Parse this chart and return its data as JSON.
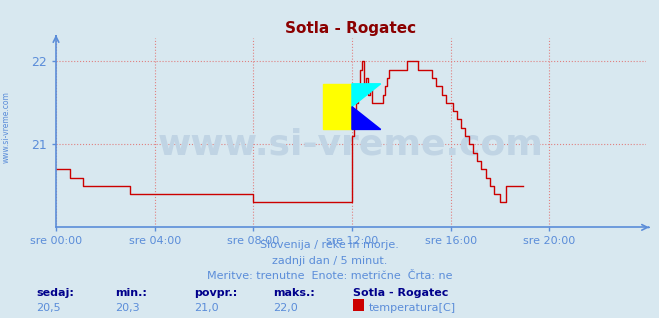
{
  "title": "Sotla - Rogatec",
  "title_color": "#8b0000",
  "bg_color": "#d8e8f0",
  "plot_bg_color": "#d8e8f0",
  "line_color": "#cc0000",
  "axis_color": "#5b8dd9",
  "grid_color": "#e08080",
  "grid_style": ":",
  "ylim": [
    20.0,
    22.28
  ],
  "yticks": [
    21,
    22
  ],
  "xlim": [
    0,
    287
  ],
  "xtick_positions": [
    0,
    48,
    96,
    144,
    192,
    240
  ],
  "xtick_labels": [
    "sre 00:00",
    "sre 04:00",
    "sre 08:00",
    "sre 12:00",
    "sre 16:00",
    "sre 20:00"
  ],
  "watermark_text": "www.si-vreme.com",
  "watermark_color": "#c0d4e4",
  "watermark_fontsize": 26,
  "sidebar_text": "www.si-vreme.com",
  "sidebar_color": "#5b8dd9",
  "info_line1": "Slovenija / reke in morje.",
  "info_line2": "zadnji dan / 5 minut.",
  "info_line3": "Meritve: trenutne  Enote: metrične  Črta: ne",
  "info_color": "#5b8dd9",
  "stats_labels": [
    "sedaj:",
    "min.:",
    "povpr.:",
    "maks.:"
  ],
  "stats_values": [
    "20,5",
    "20,3",
    "21,0",
    "22,0"
  ],
  "stats_label_color": "#00008b",
  "stats_value_color": "#5b8dd9",
  "legend_station": "Sotla - Rogatec",
  "legend_label": "temperatura[C]",
  "legend_color": "#cc0000",
  "temperature_data": [
    20.7,
    20.7,
    20.7,
    20.7,
    20.7,
    20.7,
    20.7,
    20.6,
    20.6,
    20.6,
    20.6,
    20.6,
    20.6,
    20.5,
    20.5,
    20.5,
    20.5,
    20.5,
    20.5,
    20.5,
    20.5,
    20.5,
    20.5,
    20.5,
    20.5,
    20.5,
    20.5,
    20.5,
    20.5,
    20.5,
    20.5,
    20.5,
    20.5,
    20.5,
    20.5,
    20.5,
    20.4,
    20.4,
    20.4,
    20.4,
    20.4,
    20.4,
    20.4,
    20.4,
    20.4,
    20.4,
    20.4,
    20.4,
    20.4,
    20.4,
    20.4,
    20.4,
    20.4,
    20.4,
    20.4,
    20.4,
    20.4,
    20.4,
    20.4,
    20.4,
    20.4,
    20.4,
    20.4,
    20.4,
    20.4,
    20.4,
    20.4,
    20.4,
    20.4,
    20.4,
    20.4,
    20.4,
    20.4,
    20.4,
    20.4,
    20.4,
    20.4,
    20.4,
    20.4,
    20.4,
    20.4,
    20.4,
    20.4,
    20.4,
    20.4,
    20.4,
    20.4,
    20.4,
    20.4,
    20.4,
    20.4,
    20.4,
    20.4,
    20.4,
    20.4,
    20.4,
    20.3,
    20.3,
    20.3,
    20.3,
    20.3,
    20.3,
    20.3,
    20.3,
    20.3,
    20.3,
    20.3,
    20.3,
    20.3,
    20.3,
    20.3,
    20.3,
    20.3,
    20.3,
    20.3,
    20.3,
    20.3,
    20.3,
    20.3,
    20.3,
    20.3,
    20.3,
    20.3,
    20.3,
    20.3,
    20.3,
    20.3,
    20.3,
    20.3,
    20.3,
    20.3,
    20.3,
    20.3,
    20.3,
    20.3,
    20.3,
    20.3,
    20.3,
    20.3,
    20.3,
    20.3,
    20.3,
    20.3,
    20.3,
    21.1,
    21.4,
    21.5,
    21.7,
    21.9,
    22.0,
    21.7,
    21.8,
    21.6,
    21.7,
    21.5,
    21.5,
    21.5,
    21.5,
    21.5,
    21.6,
    21.7,
    21.8,
    21.9,
    21.9,
    21.9,
    21.9,
    21.9,
    21.9,
    21.9,
    21.9,
    21.9,
    22.0,
    22.0,
    22.0,
    22.0,
    22.0,
    21.9,
    21.9,
    21.9,
    21.9,
    21.9,
    21.9,
    21.9,
    21.8,
    21.8,
    21.7,
    21.7,
    21.7,
    21.6,
    21.6,
    21.5,
    21.5,
    21.5,
    21.4,
    21.4,
    21.3,
    21.3,
    21.2,
    21.2,
    21.1,
    21.1,
    21.0,
    21.0,
    20.9,
    20.9,
    20.8,
    20.8,
    20.7,
    20.7,
    20.6,
    20.6,
    20.5,
    20.5,
    20.4,
    20.4,
    20.4,
    20.3,
    20.3,
    20.3,
    20.5,
    20.5,
    20.5,
    20.5,
    20.5,
    20.5,
    20.5,
    20.5,
    20.5
  ]
}
